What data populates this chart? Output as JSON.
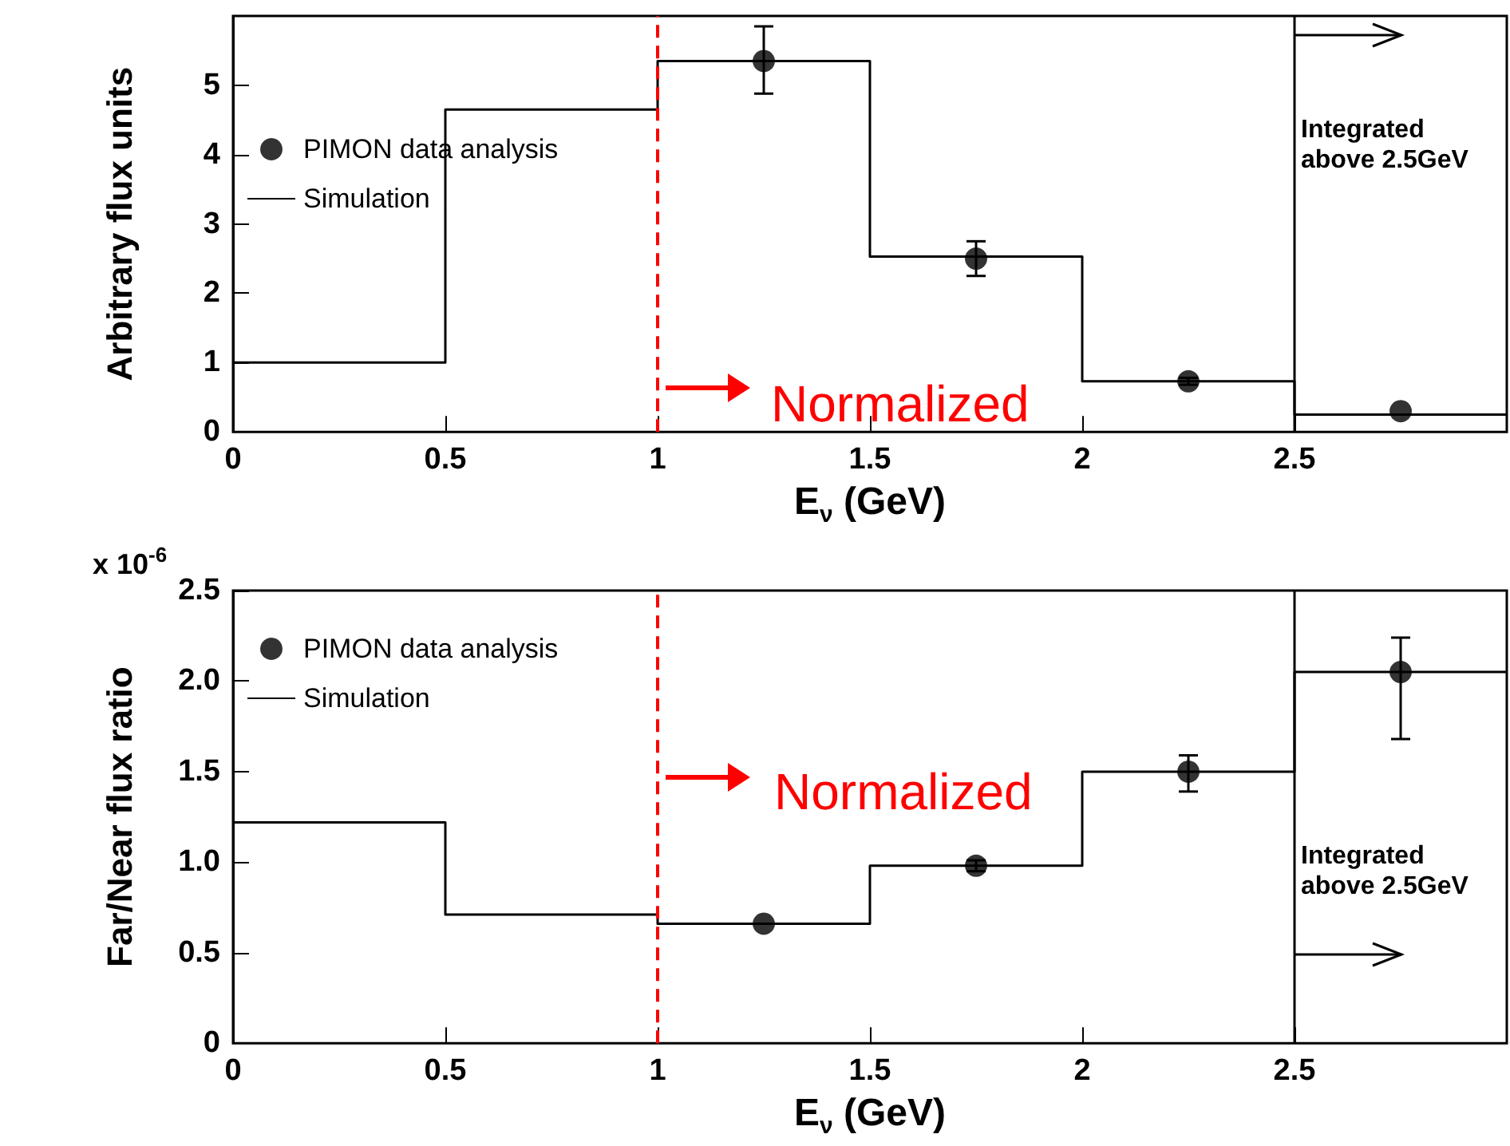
{
  "chart_data": [
    {
      "type": "scatter",
      "ylabel": "Arbitrary flux units",
      "xlabel": "E$_{ν}$ (GeV)",
      "xlim": [
        0,
        3
      ],
      "xticks": [
        0,
        0.5,
        1,
        1.5,
        2,
        2.5
      ],
      "ylim": [
        0,
        6
      ],
      "yticks": [
        0,
        1,
        2,
        3,
        4,
        5
      ],
      "legend": "top left",
      "marker": "circle",
      "series": [
        {
          "name": "PIMON data analysis",
          "color": "#000000",
          "x": [
            1.25,
            1.75,
            2.25,
            2.75
          ],
          "values": [
            5.35,
            2.5,
            0.73,
            0.3
          ],
          "errors": [
            [
              4.88,
              5.85
            ],
            [
              2.25,
              2.75
            ],
            0.05,
            null
          ]
        },
        {
          "name": "Simulation",
          "type": "histogram",
          "color": "#000000",
          "bins": [
            0,
            0.5,
            1,
            1.5,
            2,
            2.5,
            3
          ],
          "values": [
            1.0,
            4.65,
            5.35,
            2.53,
            0.73,
            0.25
          ]
        }
      ],
      "ref_lines": [
        {
          "axis": "x",
          "value": 1,
          "color": "#ff0000",
          "line_style": "dashed"
        },
        {
          "axis": "x",
          "value": 2.5,
          "color": "#000000",
          "line_style": "solid"
        }
      ],
      "annotations": [
        "Normalized",
        "Integrated above 2.5GeV"
      ]
    },
    {
      "type": "scatter",
      "ylabel": "Far/Near flux ratio",
      "xlabel": "E$_{ν}$ (GeV)",
      "xlim": [
        0,
        3
      ],
      "xticks": [
        0,
        0.5,
        1,
        1.5,
        2,
        2.5
      ],
      "ylim": [
        0,
        2.5
      ],
      "yticks": [
        0,
        0.5,
        {
          "value": 1,
          "label": "1.0"
        },
        {
          "value": 1.5,
          "label": "1.5"
        },
        {
          "value": 2,
          "label": "2.0"
        },
        {
          "value": 2.5,
          "label": "2.5"
        }
      ],
      "legend": "top left",
      "marker": "circle",
      "series": [
        {
          "name": "PIMON data analysis",
          "color": "#000000",
          "x": [
            1.25,
            1.75,
            2.25,
            2.75
          ],
          "values": [
            0.66,
            0.98,
            1.5,
            2.05
          ],
          "errors": [
            null,
            0.03,
            [
              1.39,
              1.59
            ],
            [
              1.68,
              2.24
            ]
          ]
        },
        {
          "name": "Simulation",
          "type": "histogram",
          "color": "#000000",
          "bins": [
            0,
            0.5,
            1,
            1.5,
            2,
            2.5,
            3
          ],
          "values": [
            1.22,
            0.71,
            0.66,
            0.98,
            1.5,
            2.05
          ]
        }
      ],
      "ref_lines": [
        {
          "axis": "x",
          "value": 1,
          "color": "#ff0000",
          "line_style": "dashed"
        },
        {
          "axis": "x",
          "value": 2.5,
          "color": "#000000",
          "line_style": "solid"
        }
      ],
      "annotations": [
        "x 10$^{-6}$",
        "Normalized",
        "Integrated above 2.5GeV"
      ]
    }
  ]
}
